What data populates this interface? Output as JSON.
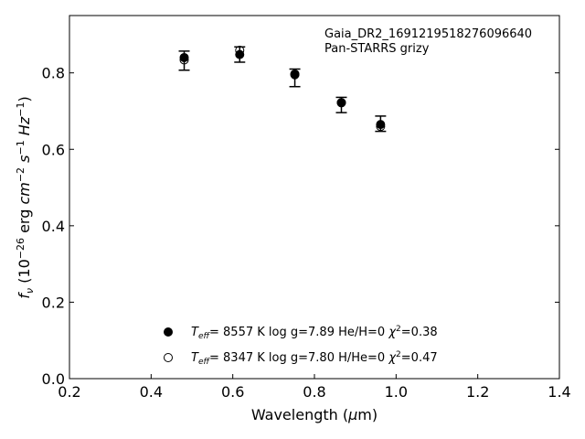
{
  "chart_data": {
    "type": "scatter",
    "title": "",
    "annotation": [
      "Gaia_DR2_1691219518276096640",
      "Pan-STARRS grizy"
    ],
    "xlabel": "Wavelength (μm)",
    "ylabel": "f_ν (10^-26 erg cm^-2 s^-1 Hz^-1)",
    "xlim": [
      0.2,
      1.4
    ],
    "ylim": [
      0.0,
      0.95
    ],
    "xticks": [
      "0.2",
      "0.4",
      "0.6",
      "0.8",
      "1.0",
      "1.2",
      "1.4"
    ],
    "yticks": [
      "0.0",
      "0.2",
      "0.4",
      "0.6",
      "0.8"
    ],
    "grid": false,
    "legend_position": "bottom-center",
    "observed": {
      "x": [
        0.481,
        0.617,
        0.752,
        0.866,
        0.962
      ],
      "y": [
        0.832,
        0.848,
        0.787,
        0.716,
        0.667
      ],
      "yerr": [
        0.025,
        0.02,
        0.023,
        0.02,
        0.02
      ]
    },
    "series": [
      {
        "name": "T_eff= 8557 K log g=7.89 He/H=0 χ²=0.38",
        "marker": "filled-circle",
        "x": [
          0.481,
          0.617,
          0.752,
          0.866,
          0.962
        ],
        "y": [
          0.84,
          0.848,
          0.797,
          0.722,
          0.665
        ]
      },
      {
        "name": "T_eff= 8347 K log g=7.80 H/He=0 χ²=0.47",
        "marker": "open-circle",
        "x": [
          0.481,
          0.617,
          0.752,
          0.866,
          0.962
        ],
        "y": [
          0.834,
          0.859,
          0.795,
          0.722,
          0.66
        ]
      }
    ],
    "legend": {
      "filled": {
        "teff_value": "8557 K",
        "logg": "log g=7.89",
        "comp": "He/H=0",
        "chi": "=0.38"
      },
      "open": {
        "teff_value": "8347 K",
        "logg": "log g=7.80",
        "comp": "H/He=0",
        "chi": "=0.47"
      }
    }
  }
}
